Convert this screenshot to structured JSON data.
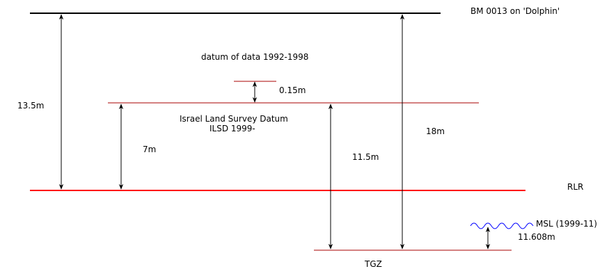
{
  "labels": {
    "bm": "BM 0013 on 'Dolphin'",
    "datum_1992": "datum of data 1992-1998",
    "offset_015": "0.15m",
    "ilsd_line1": "Israel Land Survey Datum",
    "ilsd_line2": "ILSD 1999-",
    "dist_135": "13.5m",
    "dist_7": "7m",
    "dist_115": "11.5m",
    "dist_18": "18m",
    "rlr": "RLR",
    "msl": "MSL (1999-11)",
    "dist_11608": "11.608m",
    "tgz": "TGZ"
  },
  "colors": {
    "bm_line": "#000000",
    "datum_line": "#aa0000",
    "rlr_line": "#ff0000",
    "msl_wave": "#0000ff",
    "arrow": "#000000"
  }
}
